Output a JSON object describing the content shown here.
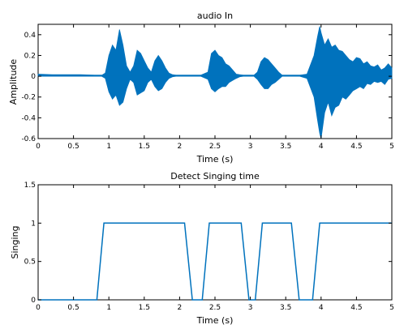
{
  "chart_data": [
    {
      "type": "line",
      "title": "audio In",
      "xlabel": "Time (s)",
      "ylabel": "Amplitude",
      "xlim": [
        0,
        5
      ],
      "ylim": [
        -0.6,
        0.5
      ],
      "xticks": [
        "0",
        "0.5",
        "1",
        "1.5",
        "2",
        "2.5",
        "3",
        "3.5",
        "4",
        "4.5",
        "5"
      ],
      "yticks": [
        "-0.6",
        "-0.4",
        "-0.2",
        "0",
        "0.2",
        "0.4"
      ],
      "grid": false,
      "color": "#0072bd",
      "series": [
        {
          "x": [
            0.0,
            0.2,
            0.4,
            0.6,
            0.8,
            0.9,
            0.95,
            1.0,
            1.05,
            1.1,
            1.15,
            1.2,
            1.25,
            1.3,
            1.35,
            1.4,
            1.45,
            1.5,
            1.55,
            1.6,
            1.65,
            1.7,
            1.75,
            1.8,
            1.85,
            1.9,
            1.95,
            2.0,
            2.05,
            2.1,
            2.15,
            2.2,
            2.3,
            2.4,
            2.45,
            2.5,
            2.55,
            2.6,
            2.65,
            2.7,
            2.75,
            2.8,
            2.85,
            2.9,
            2.95,
            3.0,
            3.05,
            3.1,
            3.15,
            3.2,
            3.25,
            3.3,
            3.35,
            3.4,
            3.45,
            3.5,
            3.55,
            3.6,
            3.65,
            3.7,
            3.8,
            3.9,
            3.95,
            3.98,
            4.0,
            4.05,
            4.1,
            4.15,
            4.2,
            4.25,
            4.3,
            4.35,
            4.4,
            4.45,
            4.5,
            4.55,
            4.6,
            4.65,
            4.7,
            4.75,
            4.8,
            4.85,
            4.9,
            4.95,
            5.0
          ],
          "upper": [
            0.02,
            0.015,
            0.015,
            0.015,
            0.01,
            0.01,
            0.03,
            0.2,
            0.3,
            0.25,
            0.45,
            0.3,
            0.1,
            0.04,
            0.1,
            0.25,
            0.22,
            0.15,
            0.08,
            0.04,
            0.15,
            0.2,
            0.15,
            0.08,
            0.03,
            0.015,
            0.01,
            0.01,
            0.01,
            0.01,
            0.01,
            0.01,
            0.01,
            0.04,
            0.22,
            0.25,
            0.2,
            0.18,
            0.12,
            0.1,
            0.06,
            0.02,
            0.015,
            0.01,
            0.01,
            0.01,
            0.01,
            0.04,
            0.14,
            0.18,
            0.16,
            0.12,
            0.08,
            0.04,
            0.01,
            0.01,
            0.01,
            0.01,
            0.01,
            0.01,
            0.02,
            0.2,
            0.38,
            0.48,
            0.42,
            0.3,
            0.36,
            0.28,
            0.3,
            0.25,
            0.24,
            0.2,
            0.16,
            0.14,
            0.18,
            0.17,
            0.12,
            0.14,
            0.1,
            0.09,
            0.11,
            0.06,
            0.08,
            0.12,
            0.08
          ],
          "lower": [
            0.0,
            0.0,
            0.0,
            0.0,
            0.0,
            0.0,
            -0.02,
            -0.15,
            -0.22,
            -0.18,
            -0.28,
            -0.25,
            -0.12,
            -0.03,
            -0.06,
            -0.18,
            -0.16,
            -0.14,
            -0.06,
            -0.03,
            -0.1,
            -0.14,
            -0.12,
            -0.06,
            -0.02,
            -0.005,
            0.0,
            0.0,
            0.0,
            0.0,
            0.0,
            0.0,
            0.0,
            -0.03,
            -0.12,
            -0.15,
            -0.12,
            -0.1,
            -0.1,
            -0.06,
            -0.04,
            -0.02,
            -0.005,
            0.0,
            0.0,
            0.0,
            0.0,
            -0.03,
            -0.08,
            -0.12,
            -0.12,
            -0.08,
            -0.06,
            -0.03,
            0.0,
            0.0,
            0.0,
            0.0,
            0.0,
            0.0,
            -0.02,
            -0.2,
            -0.42,
            -0.55,
            -0.6,
            -0.35,
            -0.25,
            -0.38,
            -0.3,
            -0.28,
            -0.2,
            -0.22,
            -0.18,
            -0.14,
            -0.12,
            -0.1,
            -0.12,
            -0.07,
            -0.08,
            -0.05,
            -0.06,
            -0.05,
            -0.08,
            -0.03,
            -0.02
          ]
        }
      ]
    },
    {
      "type": "line",
      "title": "Detect Singing time",
      "xlabel": "Time (s)",
      "ylabel": "Singing",
      "xlim": [
        0,
        5
      ],
      "ylim": [
        0,
        1.5
      ],
      "xticks": [
        "0",
        "0.5",
        "1",
        "1.5",
        "2",
        "2.5",
        "3",
        "3.5",
        "4",
        "4.5",
        "5"
      ],
      "yticks": [
        "0",
        "0.5",
        "1",
        "1.5"
      ],
      "grid": false,
      "color": "#0072bd",
      "series": [
        {
          "x": [
            0.0,
            0.83,
            0.93,
            2.07,
            2.18,
            2.32,
            2.42,
            2.87,
            2.98,
            3.07,
            3.17,
            3.58,
            3.69,
            3.88,
            3.98,
            5.0
          ],
          "y": [
            0,
            0,
            1,
            1,
            0,
            0,
            1,
            1,
            0,
            0,
            1,
            1,
            0,
            0,
            1,
            1
          ]
        }
      ]
    }
  ]
}
